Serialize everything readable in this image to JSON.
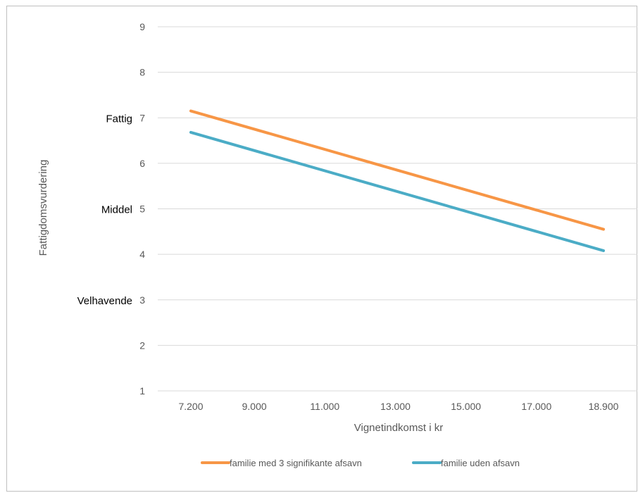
{
  "chart_data": {
    "type": "line",
    "title": "",
    "xlabel": "Vignetindkomst i kr",
    "ylabel": "Fattigdomsvurdering",
    "categories": [
      "7.200",
      "9.000",
      "11.000",
      "13.000",
      "15.000",
      "17.000",
      "18.900"
    ],
    "x": [
      7200,
      18900
    ],
    "ylim": [
      1,
      9
    ],
    "yticks": [
      "1",
      "2",
      "3",
      "4",
      "5",
      "6",
      "7",
      "8",
      "9"
    ],
    "y_level_labels": [
      {
        "label": "Fattig",
        "value": 7
      },
      {
        "label": "Middel",
        "value": 5
      },
      {
        "label": "Velhavende",
        "value": 3
      }
    ],
    "grid": true,
    "legend_position": "bottom",
    "series": [
      {
        "name": "familie med 3 signifikante afsavn",
        "color": "#f79646",
        "x": [
          7200,
          18900
        ],
        "values": [
          7.15,
          4.55
        ]
      },
      {
        "name": "familie uden afsavn",
        "color": "#4bacc6",
        "x": [
          7200,
          18900
        ],
        "values": [
          6.68,
          4.08
        ]
      }
    ]
  }
}
